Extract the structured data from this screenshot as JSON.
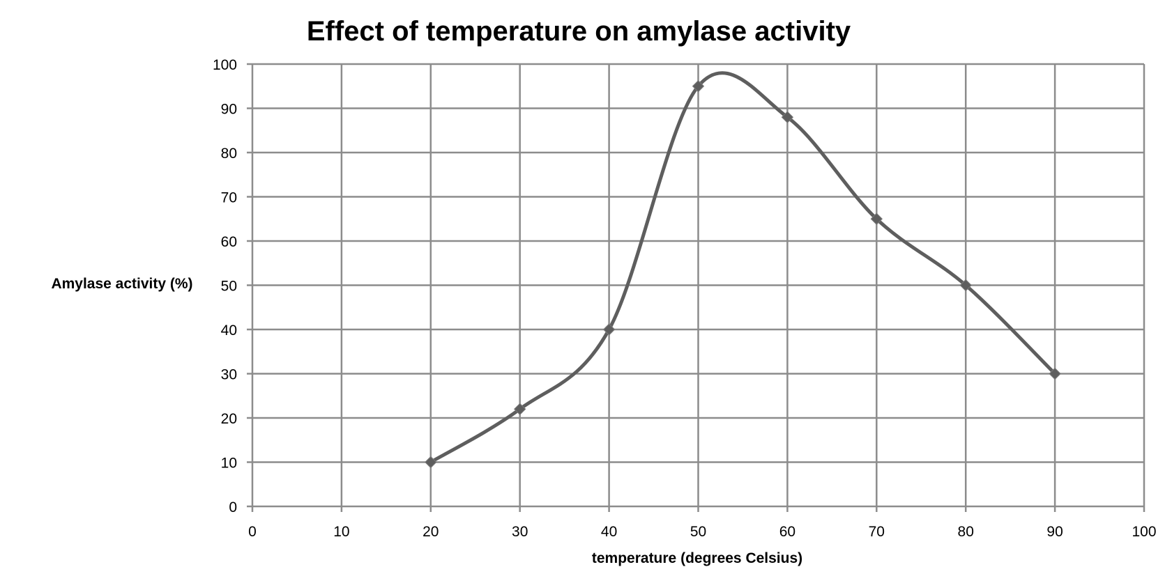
{
  "chart_data": {
    "type": "scatter",
    "title": "Effect of temperature on amylase activity",
    "xlabel": "temperature (degrees Celsius)",
    "ylabel": "Amylase activity (%)",
    "xlim": [
      0,
      100
    ],
    "ylim": [
      0,
      100
    ],
    "x_ticks": [
      "0",
      "10",
      "20",
      "30",
      "40",
      "50",
      "60",
      "70",
      "80",
      "90",
      "100"
    ],
    "y_ticks": [
      "0",
      "10",
      "20",
      "30",
      "40",
      "50",
      "60",
      "70",
      "80",
      "90",
      "100"
    ],
    "grid": true,
    "smooth_line": true,
    "series": [
      {
        "x": [
          20,
          30,
          40,
          50,
          60,
          70,
          80,
          90
        ],
        "y": [
          10,
          22,
          40,
          95,
          88,
          65,
          50,
          30
        ]
      }
    ],
    "colors": {
      "line": "#5e5e5e",
      "grid": "#8c8c8c"
    }
  }
}
